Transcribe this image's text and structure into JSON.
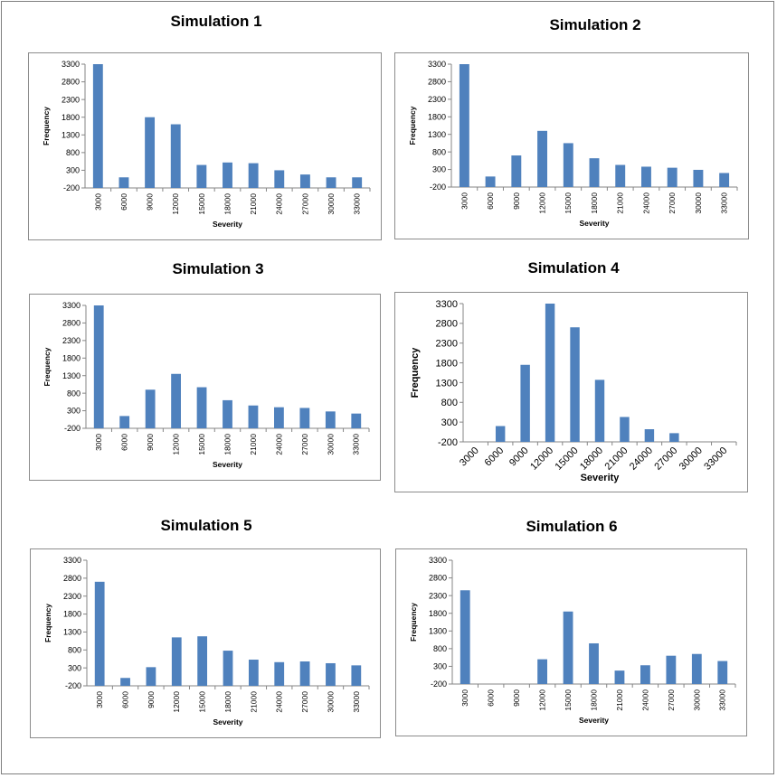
{
  "chart_data": [
    {
      "type": "bar",
      "title": "Simulation 1",
      "xlabel": "Severity",
      "ylabel": "Frequency",
      "categories": [
        "3000",
        "6000",
        "9000",
        "12000",
        "15000",
        "18000",
        "21000",
        "24000",
        "27000",
        "30000",
        "33000"
      ],
      "values": [
        3300,
        100,
        1800,
        1600,
        450,
        520,
        500,
        300,
        180,
        100,
        100
      ],
      "yticks": [
        "-200",
        "300",
        "800",
        "1300",
        "1800",
        "2300",
        "2800",
        "3300"
      ],
      "ylim": [
        -200,
        3300
      ],
      "color": "#4f81bd"
    },
    {
      "type": "bar",
      "title": "Simulation 2",
      "xlabel": "Severity",
      "ylabel": "Frequency",
      "categories": [
        "3000",
        "6000",
        "9000",
        "12000",
        "15000",
        "18000",
        "21000",
        "24000",
        "27000",
        "30000",
        "33000"
      ],
      "values": [
        3300,
        100,
        700,
        1400,
        1050,
        620,
        430,
        380,
        350,
        290,
        200
      ],
      "yticks": [
        "-200",
        "300",
        "800",
        "1300",
        "1800",
        "2300",
        "2800",
        "3300"
      ],
      "ylim": [
        -200,
        3300
      ],
      "color": "#4f81bd"
    },
    {
      "type": "bar",
      "title": "Simulation 3",
      "xlabel": "Severity",
      "ylabel": "Frequency",
      "categories": [
        "3000",
        "6000",
        "9000",
        "12000",
        "15000",
        "18000",
        "21000",
        "24000",
        "27000",
        "30000",
        "33000"
      ],
      "values": [
        3300,
        150,
        900,
        1350,
        970,
        600,
        450,
        400,
        380,
        280,
        220
      ],
      "yticks": [
        "-200",
        "300",
        "800",
        "1300",
        "1800",
        "2300",
        "2800",
        "3300"
      ],
      "ylim": [
        -200,
        3300
      ],
      "color": "#4f81bd"
    },
    {
      "type": "bar",
      "title": "Simulation 4",
      "xlabel": "Severity",
      "ylabel": "Frequency",
      "categories": [
        "3000",
        "6000",
        "9000",
        "12000",
        "15000",
        "18000",
        "21000",
        "24000",
        "27000",
        "30000",
        "33000"
      ],
      "values": [
        0,
        200,
        1750,
        3300,
        2700,
        1370,
        430,
        120,
        20,
        0,
        0
      ],
      "yticks": [
        "-200",
        "300",
        "800",
        "1300",
        "1800",
        "2300",
        "2800",
        "3300"
      ],
      "ylim": [
        -200,
        3300
      ],
      "color": "#4f81bd"
    },
    {
      "type": "bar",
      "title": "Simulation 5",
      "xlabel": "Severity",
      "ylabel": "Frequency",
      "categories": [
        "3000",
        "6000",
        "9000",
        "12000",
        "15000",
        "18000",
        "21000",
        "24000",
        "27000",
        "30000",
        "33000"
      ],
      "values": [
        2700,
        20,
        320,
        1150,
        1180,
        780,
        530,
        460,
        480,
        430,
        370
      ],
      "yticks": [
        "-200",
        "300",
        "800",
        "1300",
        "1800",
        "2300",
        "2800",
        "3300"
      ],
      "ylim": [
        -200,
        3300
      ],
      "color": "#4f81bd"
    },
    {
      "type": "bar",
      "title": "Simulation 6",
      "xlabel": "Severity",
      "ylabel": "Frequency",
      "categories": [
        "3000",
        "6000",
        "9000",
        "12000",
        "15000",
        "18000",
        "21000",
        "24000",
        "27000",
        "30000",
        "33000"
      ],
      "values": [
        2450,
        0,
        0,
        500,
        1850,
        950,
        180,
        330,
        600,
        650,
        450
      ],
      "yticks": [
        "-200",
        "300",
        "800",
        "1300",
        "1800",
        "2300",
        "2800",
        "3300"
      ],
      "ylim": [
        -200,
        3300
      ],
      "color": "#4f81bd"
    }
  ]
}
